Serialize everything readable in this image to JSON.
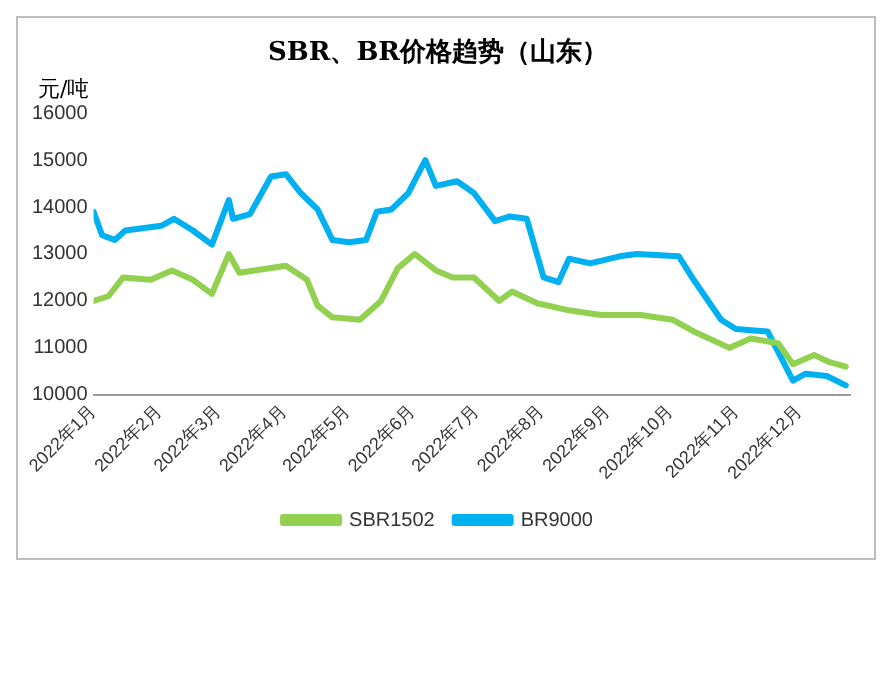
{
  "chart_data": {
    "type": "line",
    "title": "SBR、BR价格趋势（山东）",
    "ylabel": "元/吨",
    "xlim": [
      "2022-01-01",
      "2022-12-25"
    ],
    "xticks": [
      {
        "value": "2022-01-01",
        "label": "2022年1月"
      },
      {
        "value": "2022-02-01",
        "label": "2022年2月"
      },
      {
        "value": "2022-03-01",
        "label": "2022年3月"
      },
      {
        "value": "2022-04-01",
        "label": "2022年4月"
      },
      {
        "value": "2022-05-01",
        "label": "2022年5月"
      },
      {
        "value": "2022-06-01",
        "label": "2022年6月"
      },
      {
        "value": "2022-07-01",
        "label": "2022年7月"
      },
      {
        "value": "2022-08-01",
        "label": "2022年8月"
      },
      {
        "value": "2022-09-01",
        "label": "2022年9月"
      },
      {
        "value": "2022-10-01",
        "label": "2022年10月"
      },
      {
        "value": "2022-11-01",
        "label": "2022年11月"
      },
      {
        "value": "2022-12-01",
        "label": "2022年12月"
      }
    ],
    "ylim": [
      10000,
      16000
    ],
    "yticks": [
      10000,
      11000,
      12000,
      13000,
      14000,
      15000,
      16000
    ],
    "grid": false,
    "legend": "bottom",
    "marker": "none",
    "line_style": "solid",
    "series": [
      {
        "name": "SBR1502",
        "color": "#92d050",
        "x": [
          "2022-01-01",
          "2022-01-08",
          "2022-01-15",
          "2022-01-28",
          "2022-02-07",
          "2022-02-17",
          "2022-02-26",
          "2022-03-06",
          "2022-03-11",
          "2022-03-18",
          "2022-04-02",
          "2022-04-12",
          "2022-04-17",
          "2022-04-24",
          "2022-05-07",
          "2022-05-17",
          "2022-05-25",
          "2022-06-02",
          "2022-06-12",
          "2022-06-20",
          "2022-06-30",
          "2022-07-12",
          "2022-07-18",
          "2022-07-30",
          "2022-08-14",
          "2022-08-29",
          "2022-09-17",
          "2022-10-02",
          "2022-10-12",
          "2022-10-29",
          "2022-11-08",
          "2022-11-21",
          "2022-11-28",
          "2022-12-08",
          "2022-12-15",
          "2022-12-23"
        ],
        "values": [
          12000,
          12100,
          12500,
          12450,
          12650,
          12450,
          12150,
          13000,
          12600,
          12650,
          12750,
          12450,
          11900,
          11650,
          11600,
          12000,
          12700,
          13000,
          12650,
          12500,
          12500,
          12000,
          12200,
          11950,
          11800,
          11700,
          11700,
          11600,
          11350,
          11000,
          11200,
          11100,
          10650,
          10850,
          10700,
          10600
        ]
      },
      {
        "name": "BR9000",
        "color": "#00b0f0",
        "x": [
          "2022-01-01",
          "2022-01-05",
          "2022-01-11",
          "2022-01-16",
          "2022-02-02",
          "2022-02-08",
          "2022-02-17",
          "2022-02-26",
          "2022-03-06",
          "2022-03-08",
          "2022-03-16",
          "2022-03-26",
          "2022-04-02",
          "2022-04-09",
          "2022-04-17",
          "2022-04-24",
          "2022-05-02",
          "2022-05-10",
          "2022-05-15",
          "2022-05-22",
          "2022-05-30",
          "2022-06-07",
          "2022-06-12",
          "2022-06-22",
          "2022-06-30",
          "2022-07-10",
          "2022-07-17",
          "2022-07-25",
          "2022-08-02",
          "2022-08-09",
          "2022-08-14",
          "2022-08-24",
          "2022-09-07",
          "2022-09-15",
          "2022-10-05",
          "2022-10-12",
          "2022-10-25",
          "2022-11-01",
          "2022-11-16",
          "2022-11-28",
          "2022-12-04",
          "2022-12-14",
          "2022-12-23"
        ],
        "values": [
          13900,
          13400,
          13300,
          13500,
          13600,
          13750,
          13500,
          13200,
          14150,
          13750,
          13850,
          14650,
          14700,
          14300,
          13950,
          13300,
          13250,
          13300,
          13900,
          13950,
          14300,
          15000,
          14450,
          14550,
          14300,
          13700,
          13800,
          13750,
          12500,
          12400,
          12900,
          12800,
          12950,
          13000,
          12950,
          12450,
          11600,
          11400,
          11350,
          10300,
          10450,
          10400,
          10200
        ]
      }
    ]
  }
}
